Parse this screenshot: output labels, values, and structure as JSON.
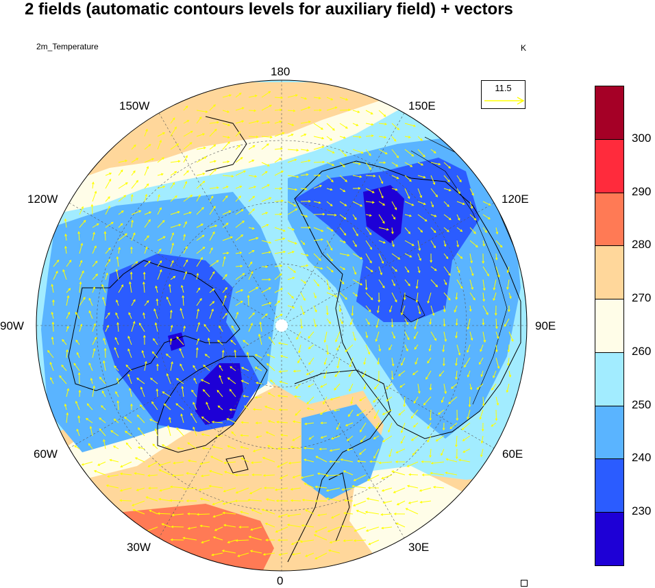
{
  "title": "2 fields (automatic contours levels for auxiliary field) + vectors",
  "left_string": "2m_Temperature",
  "right_string": "K",
  "reference_vector": {
    "magnitude": "11.5",
    "color": "#ffff00"
  },
  "longitude_labels": {
    "deg180": "180",
    "w150": "150W",
    "e150": "150E",
    "w120": "120W",
    "e120": "120E",
    "w90": "90W",
    "e90": "90E",
    "w60": "60W",
    "e60": "60E",
    "w30": "30W",
    "e30": "30E",
    "deg0": "0"
  },
  "colorbar": {
    "colors": [
      "#a50026",
      "#ff2b3c",
      "#ff7a55",
      "#ffd79b",
      "#fffde8",
      "#a2ecff",
      "#5ab4ff",
      "#2b5cff",
      "#1e00d6"
    ],
    "labels": [
      "300",
      "290",
      "280",
      "270",
      "260",
      "250",
      "240",
      "230"
    ]
  },
  "map_colors": {
    "ocean_cold": "#a2ecff",
    "mid": "#5ab4ff",
    "cold": "#2b5cff",
    "coldest": "#1e00d6",
    "warm": "#ffd79b",
    "neutral": "#fffde8",
    "hot": "#ff7a55",
    "vector": "#ffff00",
    "coast": "#000000"
  }
}
